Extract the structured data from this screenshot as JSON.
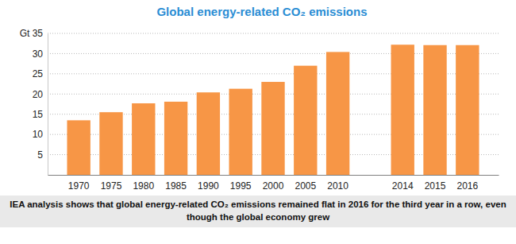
{
  "chart_data": {
    "type": "bar",
    "title": "Global energy-related CO₂ emissions",
    "caption": "IEA analysis shows that global energy-related CO₂ emissions remained flat in 2016 for the third year in a row, even though the global economy grew",
    "categories": [
      "1970",
      "1975",
      "1980",
      "1985",
      "1990",
      "1995",
      "2000",
      "2005",
      "2010",
      null,
      "2014",
      "2015",
      "2016"
    ],
    "values": [
      13.5,
      15.5,
      17.7,
      18.1,
      20.4,
      21.3,
      23.0,
      27.0,
      30.4,
      null,
      32.2,
      32.1,
      32.1
    ],
    "color": "#f79646",
    "ylim": [
      0,
      35
    ],
    "yticks": [
      5,
      10,
      15,
      20,
      25,
      30,
      {
        "value": 35,
        "label": "Gt 35"
      }
    ],
    "grid": true
  }
}
